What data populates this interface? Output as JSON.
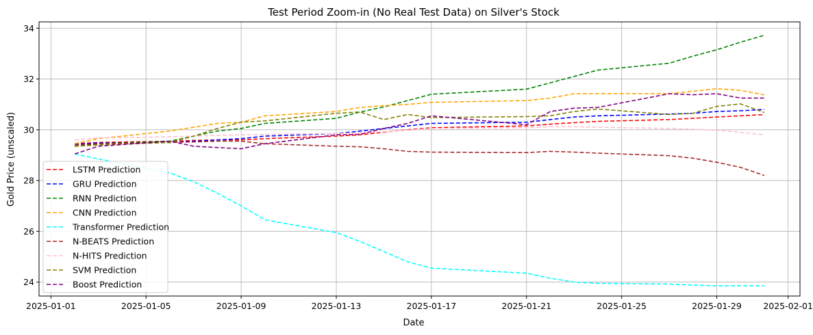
{
  "chart_data": {
    "type": "line",
    "title": "Test Period Zoom-in (No Real Test Data) on Silver's Stock",
    "xlabel": "Date",
    "ylabel": "Gold Price (unscaled)",
    "x": [
      "2025-01-02",
      "2025-01-03",
      "2025-01-06",
      "2025-01-07",
      "2025-01-08",
      "2025-01-09",
      "2025-01-10",
      "2025-01-13",
      "2025-01-14",
      "2025-01-15",
      "2025-01-16",
      "2025-01-17",
      "2025-01-21",
      "2025-01-22",
      "2025-01-23",
      "2025-01-24",
      "2025-01-27",
      "2025-01-28",
      "2025-01-29",
      "2025-01-30",
      "2025-01-31"
    ],
    "xticks": [
      "2025-01-01",
      "2025-01-05",
      "2025-01-09",
      "2025-01-13",
      "2025-01-17",
      "2025-01-21",
      "2025-01-25",
      "2025-01-29",
      "2025-02-01"
    ],
    "xlim": [
      "2024-12-31T12:00",
      "2025-02-01T12:00"
    ],
    "yticks": [
      24,
      26,
      28,
      30,
      32,
      34
    ],
    "ylim": [
      23.45,
      34.25
    ],
    "grid": true,
    "legend_position": "lower-left",
    "series": [
      {
        "name": "LSTM Prediction",
        "color": "#ff0000",
        "values": [
          29.45,
          29.5,
          29.55,
          29.58,
          29.6,
          29.6,
          29.65,
          29.75,
          29.8,
          29.9,
          30.0,
          30.08,
          30.15,
          30.22,
          30.28,
          30.33,
          30.4,
          30.45,
          30.5,
          30.55,
          30.6
        ]
      },
      {
        "name": "GRU Prediction",
        "color": "#0000ff",
        "values": [
          29.42,
          29.48,
          29.5,
          29.55,
          29.6,
          29.65,
          29.75,
          29.85,
          29.95,
          30.05,
          30.15,
          30.25,
          30.3,
          30.4,
          30.5,
          30.55,
          30.62,
          30.65,
          30.72,
          30.75,
          30.8
        ]
      },
      {
        "name": "RNN Prediction",
        "color": "#008000",
        "values": [
          29.35,
          29.45,
          29.55,
          29.75,
          29.95,
          30.05,
          30.25,
          30.45,
          30.7,
          30.9,
          31.15,
          31.4,
          31.6,
          31.85,
          32.1,
          32.35,
          32.62,
          32.9,
          33.15,
          33.45,
          33.72
        ]
      },
      {
        "name": "CNN Prediction",
        "color": "#ffa500",
        "values": [
          29.45,
          29.65,
          29.95,
          30.1,
          30.25,
          30.3,
          30.55,
          30.72,
          30.88,
          30.95,
          31.0,
          31.08,
          31.15,
          31.25,
          31.42,
          31.42,
          31.42,
          31.52,
          31.62,
          31.55,
          31.38
        ]
      },
      {
        "name": "Transformer Prediction",
        "color": "#00ffff",
        "values": [
          29.05,
          28.85,
          28.3,
          27.95,
          27.5,
          27.0,
          26.45,
          25.95,
          25.6,
          25.2,
          24.8,
          24.55,
          24.35,
          24.15,
          24.0,
          23.95,
          23.92,
          23.88,
          23.85,
          23.85,
          23.85
        ]
      },
      {
        "name": "N-BEATS Prediction",
        "color": "#a52a2a",
        "values": [
          29.4,
          29.45,
          29.5,
          29.52,
          29.55,
          29.55,
          29.45,
          29.35,
          29.33,
          29.25,
          29.15,
          29.12,
          29.1,
          29.15,
          29.12,
          29.08,
          28.98,
          28.88,
          28.72,
          28.52,
          28.2
        ]
      },
      {
        "name": "N-HITS Prediction",
        "color": "#ffc0cb",
        "values": [
          29.6,
          29.68,
          29.72,
          29.75,
          29.78,
          29.8,
          29.82,
          29.85,
          29.88,
          29.92,
          29.98,
          30.05,
          30.08,
          30.12,
          30.12,
          30.1,
          30.05,
          30.02,
          29.98,
          29.9,
          29.8
        ]
      },
      {
        "name": "SVM Prediction",
        "color": "#808000",
        "values": [
          29.35,
          29.4,
          29.5,
          29.75,
          30.05,
          30.3,
          30.35,
          30.65,
          30.7,
          30.4,
          30.6,
          30.48,
          30.52,
          30.55,
          30.72,
          30.82,
          30.6,
          30.65,
          30.92,
          31.02,
          30.68
        ]
      },
      {
        "name": "Boost Prediction",
        "color": "#800080",
        "values": [
          29.05,
          29.35,
          29.55,
          29.35,
          29.3,
          29.25,
          29.45,
          29.8,
          29.82,
          30.05,
          30.25,
          30.55,
          30.2,
          30.72,
          30.85,
          30.88,
          31.42,
          31.38,
          31.42,
          31.25,
          31.25
        ]
      }
    ]
  }
}
